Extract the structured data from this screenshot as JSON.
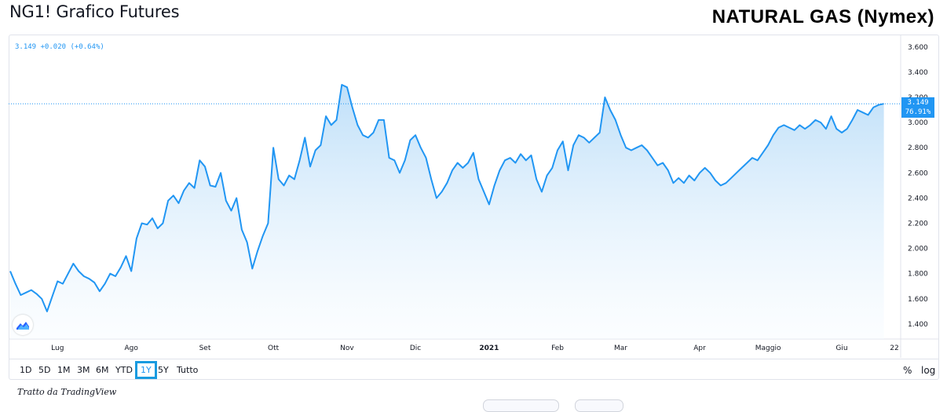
{
  "header": {
    "title": "NG1! Grafico Futures",
    "brand": "NATURAL GAS (Nymex)"
  },
  "legend": {
    "price": "3.149",
    "change": "+0.020",
    "change_pct": "(+0.64%)"
  },
  "last_price_tag": {
    "price": "3.149",
    "pct": "76.91%"
  },
  "colors": {
    "line": "#2196f3",
    "fill_top": "#b8dcf8",
    "fill_bottom": "#f6fbff",
    "accent": "#1a9be0",
    "grid_text": "#131722"
  },
  "range_buttons": [
    "1D",
    "5D",
    "1M",
    "3M",
    "6M",
    "YTD",
    "1Y",
    "5Y",
    "Tutto"
  ],
  "active_range": "1Y",
  "right_buttons": {
    "percent": "%",
    "log": "log"
  },
  "footer": {
    "attribution": "Tratto da TradingView"
  },
  "icons": {
    "logo": "tradingview-logo-icon"
  },
  "chart_data": {
    "type": "area",
    "title": "",
    "xlabel": "",
    "ylabel": "",
    "ylim": [
      1.3,
      3.68
    ],
    "xlim": [
      0,
      168
    ],
    "y_ticks": [
      "1.400",
      "1.600",
      "1.800",
      "2.000",
      "2.200",
      "2.400",
      "2.600",
      "2.800",
      "3.000",
      "3.200",
      "3.400",
      "3.600"
    ],
    "x_ticks": [
      {
        "label": "Lug",
        "x": 9
      },
      {
        "label": "Ago",
        "x": 23
      },
      {
        "label": "Set",
        "x": 37
      },
      {
        "label": "Ott",
        "x": 50
      },
      {
        "label": "Nov",
        "x": 64
      },
      {
        "label": "Dic",
        "x": 77
      },
      {
        "label": "2021",
        "x": 91,
        "bold": true
      },
      {
        "label": "Feb",
        "x": 104
      },
      {
        "label": "Mar",
        "x": 116
      },
      {
        "label": "Apr",
        "x": 131
      },
      {
        "label": "Maggio",
        "x": 144
      },
      {
        "label": "Giu",
        "x": 158
      },
      {
        "label": "22",
        "x": 168
      }
    ],
    "grid": false,
    "last_value": 3.149,
    "series": [
      {
        "values": [
          [
            0,
            1.82
          ],
          [
            1,
            1.72
          ],
          [
            2,
            1.63
          ],
          [
            3,
            1.65
          ],
          [
            4,
            1.67
          ],
          [
            5,
            1.64
          ],
          [
            6,
            1.6
          ],
          [
            7,
            1.5
          ],
          [
            8,
            1.62
          ],
          [
            9,
            1.74
          ],
          [
            10,
            1.72
          ],
          [
            11,
            1.8
          ],
          [
            12,
            1.88
          ],
          [
            13,
            1.82
          ],
          [
            14,
            1.78
          ],
          [
            15,
            1.76
          ],
          [
            16,
            1.73
          ],
          [
            17,
            1.66
          ],
          [
            18,
            1.72
          ],
          [
            19,
            1.8
          ],
          [
            20,
            1.78
          ],
          [
            21,
            1.85
          ],
          [
            22,
            1.94
          ],
          [
            23,
            1.82
          ],
          [
            24,
            2.08
          ],
          [
            25,
            2.2
          ],
          [
            26,
            2.19
          ],
          [
            27,
            2.24
          ],
          [
            28,
            2.16
          ],
          [
            29,
            2.2
          ],
          [
            30,
            2.38
          ],
          [
            31,
            2.42
          ],
          [
            32,
            2.36
          ],
          [
            33,
            2.46
          ],
          [
            34,
            2.52
          ],
          [
            35,
            2.48
          ],
          [
            36,
            2.7
          ],
          [
            37,
            2.65
          ],
          [
            38,
            2.5
          ],
          [
            39,
            2.49
          ],
          [
            40,
            2.6
          ],
          [
            41,
            2.38
          ],
          [
            42,
            2.3
          ],
          [
            43,
            2.4
          ],
          [
            44,
            2.15
          ],
          [
            45,
            2.05
          ],
          [
            46,
            1.84
          ],
          [
            47,
            1.98
          ],
          [
            48,
            2.1
          ],
          [
            49,
            2.2
          ],
          [
            50,
            2.8
          ],
          [
            51,
            2.55
          ],
          [
            52,
            2.5
          ],
          [
            53,
            2.58
          ],
          [
            54,
            2.55
          ],
          [
            55,
            2.7
          ],
          [
            56,
            2.88
          ],
          [
            57,
            2.65
          ],
          [
            58,
            2.78
          ],
          [
            59,
            2.82
          ],
          [
            60,
            3.05
          ],
          [
            61,
            2.98
          ],
          [
            62,
            3.02
          ],
          [
            63,
            3.3
          ],
          [
            64,
            3.28
          ],
          [
            65,
            3.12
          ],
          [
            66,
            2.98
          ],
          [
            67,
            2.9
          ],
          [
            68,
            2.88
          ],
          [
            69,
            2.92
          ],
          [
            70,
            3.02
          ],
          [
            71,
            3.02
          ],
          [
            72,
            2.72
          ],
          [
            73,
            2.7
          ],
          [
            74,
            2.6
          ],
          [
            75,
            2.7
          ],
          [
            76,
            2.86
          ],
          [
            77,
            2.9
          ],
          [
            78,
            2.8
          ],
          [
            79,
            2.72
          ],
          [
            80,
            2.55
          ],
          [
            81,
            2.4
          ],
          [
            82,
            2.45
          ],
          [
            83,
            2.52
          ],
          [
            84,
            2.62
          ],
          [
            85,
            2.68
          ],
          [
            86,
            2.64
          ],
          [
            87,
            2.68
          ],
          [
            88,
            2.76
          ],
          [
            89,
            2.55
          ],
          [
            90,
            2.45
          ],
          [
            91,
            2.35
          ],
          [
            92,
            2.5
          ],
          [
            93,
            2.62
          ],
          [
            94,
            2.7
          ],
          [
            95,
            2.72
          ],
          [
            96,
            2.68
          ],
          [
            97,
            2.75
          ],
          [
            98,
            2.7
          ],
          [
            99,
            2.74
          ],
          [
            100,
            2.55
          ],
          [
            101,
            2.45
          ],
          [
            102,
            2.58
          ],
          [
            103,
            2.64
          ],
          [
            104,
            2.78
          ],
          [
            105,
            2.85
          ],
          [
            106,
            2.62
          ],
          [
            107,
            2.82
          ],
          [
            108,
            2.9
          ],
          [
            109,
            2.88
          ],
          [
            110,
            2.84
          ],
          [
            111,
            2.88
          ],
          [
            112,
            2.92
          ],
          [
            113,
            3.2
          ],
          [
            114,
            3.1
          ],
          [
            115,
            3.02
          ],
          [
            116,
            2.9
          ],
          [
            117,
            2.8
          ],
          [
            118,
            2.78
          ],
          [
            119,
            2.8
          ],
          [
            120,
            2.82
          ],
          [
            121,
            2.78
          ],
          [
            122,
            2.72
          ],
          [
            123,
            2.66
          ],
          [
            124,
            2.68
          ],
          [
            125,
            2.62
          ],
          [
            126,
            2.52
          ],
          [
            127,
            2.56
          ],
          [
            128,
            2.52
          ],
          [
            129,
            2.58
          ],
          [
            130,
            2.54
          ],
          [
            131,
            2.6
          ],
          [
            132,
            2.64
          ],
          [
            133,
            2.6
          ],
          [
            134,
            2.54
          ],
          [
            135,
            2.5
          ],
          [
            136,
            2.52
          ],
          [
            137,
            2.56
          ],
          [
            138,
            2.6
          ],
          [
            139,
            2.64
          ],
          [
            140,
            2.68
          ],
          [
            141,
            2.72
          ],
          [
            142,
            2.7
          ],
          [
            143,
            2.76
          ],
          [
            144,
            2.82
          ],
          [
            145,
            2.9
          ],
          [
            146,
            2.96
          ],
          [
            147,
            2.98
          ],
          [
            148,
            2.96
          ],
          [
            149,
            2.94
          ],
          [
            150,
            2.98
          ],
          [
            151,
            2.95
          ],
          [
            152,
            2.98
          ],
          [
            153,
            3.02
          ],
          [
            154,
            3.0
          ],
          [
            155,
            2.95
          ],
          [
            156,
            3.05
          ],
          [
            157,
            2.95
          ],
          [
            158,
            2.92
          ],
          [
            159,
            2.95
          ],
          [
            160,
            3.02
          ],
          [
            161,
            3.1
          ],
          [
            162,
            3.08
          ],
          [
            163,
            3.06
          ],
          [
            164,
            3.12
          ],
          [
            165,
            3.14
          ],
          [
            166,
            3.149
          ]
        ]
      }
    ]
  }
}
